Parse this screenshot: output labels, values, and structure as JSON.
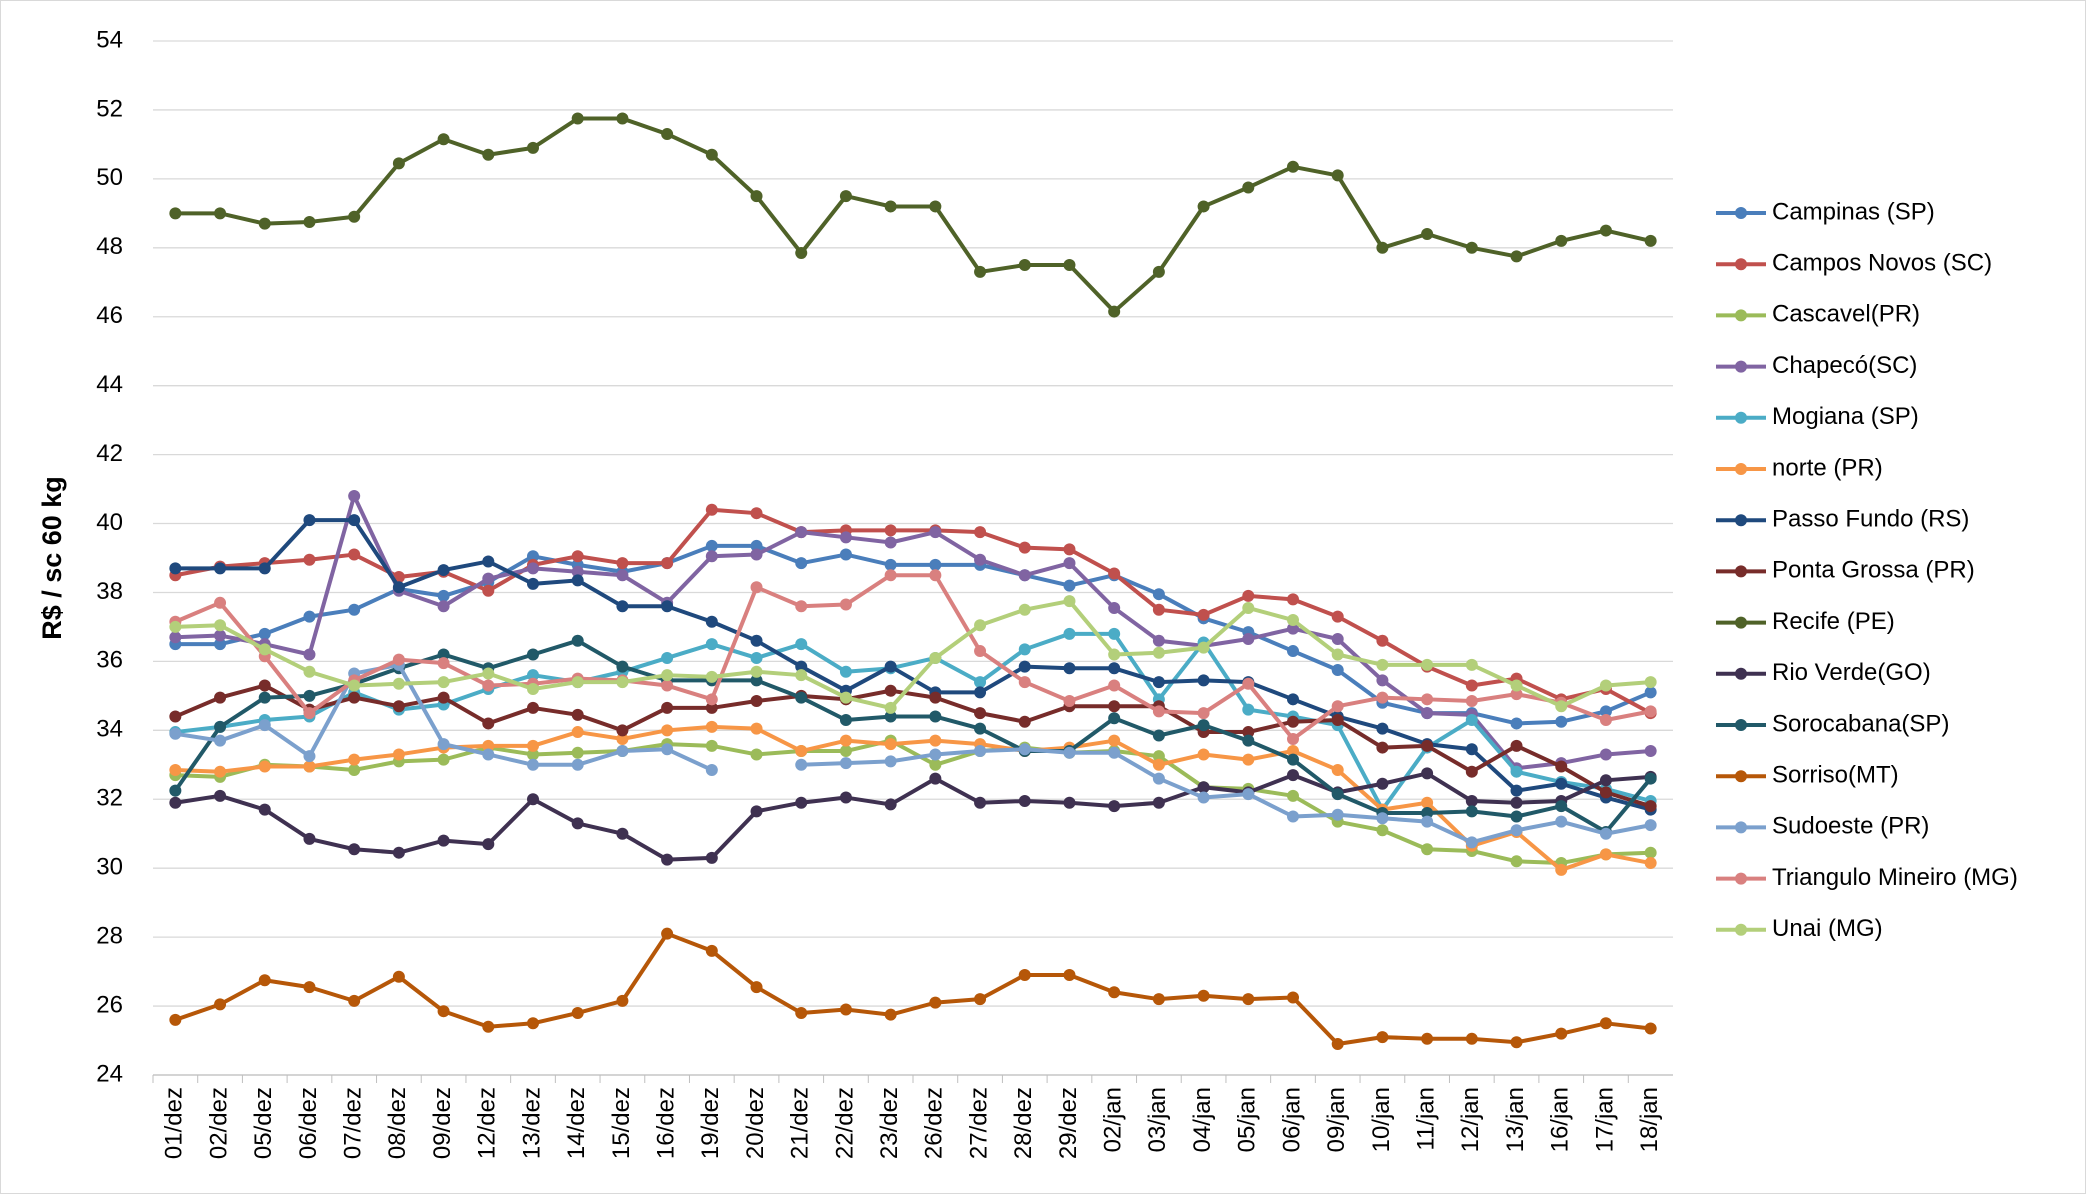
{
  "chart_data": {
    "type": "line",
    "y_label": "R$ / sc 60 kg",
    "categories": [
      "01/dez",
      "02/dez",
      "05/dez",
      "06/dez",
      "07/dez",
      "08/dez",
      "09/dez",
      "12/dez",
      "13/dez",
      "14/dez",
      "15/dez",
      "16/dez",
      "19/dez",
      "20/dez",
      "21/dez",
      "22/dez",
      "23/dez",
      "26/dez",
      "27/dez",
      "28/dez",
      "29/dez",
      "02/jan",
      "03/jan",
      "04/jan",
      "05/jan",
      "06/jan",
      "09/jan",
      "10/jan",
      "11/jan",
      "12/jan",
      "13/jan",
      "16/jan",
      "17/jan",
      "18/jan"
    ],
    "ylim": [
      24,
      54
    ],
    "yticks": [
      24,
      26,
      28,
      30,
      32,
      34,
      36,
      38,
      40,
      42,
      44,
      46,
      48,
      50,
      52,
      54
    ],
    "grid": true,
    "legend": "right",
    "series": [
      {
        "name": "Campinas (SP)",
        "color": "#4a7ebb",
        "values": [
          36.5,
          36.5,
          36.8,
          37.3,
          37.5,
          38.1,
          37.9,
          38.3,
          39.05,
          38.8,
          38.6,
          38.85,
          39.35,
          39.35,
          38.85,
          39.1,
          38.8,
          38.8,
          38.8,
          38.5,
          38.2,
          38.5,
          37.95,
          37.25,
          36.85,
          36.3,
          35.75,
          34.8,
          34.5,
          34.5,
          34.2,
          34.25,
          34.55,
          35.1
        ]
      },
      {
        "name": "Campos Novos (SC)",
        "color": "#c0504d",
        "values": [
          38.5,
          38.75,
          38.85,
          38.95,
          39.1,
          38.45,
          38.6,
          38.05,
          38.8,
          39.05,
          38.85,
          38.85,
          40.4,
          40.3,
          39.75,
          39.8,
          39.8,
          39.8,
          39.75,
          39.3,
          39.25,
          38.55,
          37.5,
          37.35,
          37.9,
          37.8,
          37.3,
          36.6,
          35.85,
          35.3,
          35.5,
          34.9,
          35.2,
          34.5
        ]
      },
      {
        "name": "Cascavel(PR)",
        "color": "#9bbb59",
        "values": [
          32.7,
          32.65,
          33,
          32.95,
          32.85,
          33.1,
          33.15,
          33.5,
          33.3,
          33.35,
          33.4,
          33.6,
          33.55,
          33.3,
          33.4,
          33.4,
          33.7,
          33,
          33.4,
          33.5,
          33.35,
          33.4,
          33.25,
          32.35,
          32.3,
          32.1,
          31.35,
          31.1,
          30.55,
          30.5,
          30.2,
          30.15,
          30.4,
          30.45
        ]
      },
      {
        "name": "Chapecó(SC)",
        "color": "#8064a2",
        "values": [
          36.7,
          36.75,
          36.5,
          36.2,
          40.8,
          38.05,
          37.6,
          38.4,
          38.7,
          38.6,
          38.5,
          37.7,
          39.05,
          39.1,
          39.75,
          39.6,
          39.45,
          39.75,
          38.95,
          38.5,
          38.85,
          37.55,
          36.6,
          36.45,
          36.65,
          36.95,
          36.65,
          35.45,
          34.5,
          34.45,
          32.9,
          33.05,
          33.3,
          33.4
        ]
      },
      {
        "name": "Mogiana (SP)",
        "color": "#4bacc6",
        "values": [
          33.95,
          34.1,
          34.3,
          34.4,
          35.1,
          34.6,
          34.75,
          35.2,
          35.6,
          35.4,
          35.7,
          36.1,
          36.5,
          36.1,
          36.5,
          35.7,
          35.8,
          36.1,
          35.4,
          36.35,
          36.8,
          36.8,
          34.9,
          36.55,
          34.6,
          34.4,
          34.15,
          31.7,
          33.5,
          34.3,
          32.8,
          32.5,
          32.3,
          31.95
        ]
      },
      {
        "name": "norte (PR)",
        "color": "#f79646",
        "values": [
          32.85,
          32.8,
          32.95,
          32.95,
          33.15,
          33.3,
          33.5,
          33.55,
          33.55,
          33.95,
          33.75,
          34,
          34.1,
          34.05,
          33.4,
          33.7,
          33.6,
          33.7,
          33.6,
          33.4,
          33.5,
          33.7,
          33,
          33.3,
          33.15,
          33.4,
          32.85,
          31.7,
          31.9,
          30.65,
          31.05,
          29.95,
          30.4,
          30.15
        ]
      },
      {
        "name": "Passo Fundo (RS)",
        "color": "#1f497d",
        "values": [
          38.7,
          38.7,
          38.7,
          40.1,
          40.1,
          38.15,
          38.65,
          38.9,
          38.25,
          38.35,
          37.6,
          37.6,
          37.15,
          36.6,
          35.85,
          35.15,
          35.85,
          35.1,
          35.1,
          35.85,
          35.8,
          35.8,
          35.4,
          35.45,
          35.4,
          34.9,
          34.4,
          34.05,
          33.6,
          33.45,
          32.25,
          32.45,
          32.05,
          31.7
        ]
      },
      {
        "name": "Ponta Grossa (PR)",
        "color": "#772c2a",
        "values": [
          34.4,
          34.95,
          35.3,
          34.6,
          34.95,
          34.7,
          34.95,
          34.2,
          34.65,
          34.45,
          34,
          34.65,
          34.65,
          34.85,
          35,
          34.9,
          35.15,
          34.95,
          34.5,
          34.25,
          34.7,
          34.7,
          34.7,
          33.95,
          33.95,
          34.25,
          34.3,
          33.5,
          33.55,
          32.8,
          33.55,
          32.95,
          32.2,
          31.8
        ]
      },
      {
        "name": "Recife (PE)",
        "color": "#4f6228",
        "values": [
          49,
          49,
          48.7,
          48.75,
          48.9,
          50.45,
          51.15,
          50.7,
          50.9,
          51.75,
          51.75,
          51.3,
          50.7,
          49.5,
          47.85,
          49.5,
          49.2,
          49.2,
          47.3,
          47.5,
          47.5,
          46.15,
          47.3,
          49.2,
          49.75,
          50.35,
          50.1,
          48,
          48.4,
          48,
          47.75,
          48.2,
          48.5,
          48.2
        ]
      },
      {
        "name": "Rio Verde(GO)",
        "color": "#3f3151",
        "values": [
          31.9,
          32.1,
          31.7,
          30.85,
          30.55,
          30.45,
          30.8,
          30.7,
          32,
          31.3,
          31,
          30.25,
          30.3,
          31.65,
          31.9,
          32.05,
          31.85,
          32.6,
          31.9,
          31.95,
          31.9,
          31.8,
          31.9,
          32.35,
          32.2,
          32.7,
          32.2,
          32.45,
          32.75,
          31.95,
          31.9,
          31.95,
          32.55,
          32.65
        ]
      },
      {
        "name": "Sorocabana(SP)",
        "color": "#215968",
        "values": [
          32.25,
          34.1,
          34.95,
          35,
          35.35,
          35.8,
          36.2,
          35.8,
          36.2,
          36.6,
          35.85,
          35.45,
          35.45,
          35.45,
          34.95,
          34.3,
          34.4,
          34.4,
          34.05,
          33.4,
          33.4,
          34.35,
          33.85,
          34.15,
          33.7,
          33.15,
          32.15,
          31.6,
          31.6,
          31.65,
          31.5,
          31.8,
          31.05,
          32.6
        ]
      },
      {
        "name": "Sorriso(MT)",
        "color": "#b65708",
        "values": [
          25.6,
          26.05,
          26.75,
          26.55,
          26.15,
          26.85,
          25.85,
          25.4,
          25.5,
          25.8,
          26.15,
          28.1,
          27.6,
          26.55,
          25.8,
          25.9,
          25.75,
          26.1,
          26.2,
          26.9,
          26.9,
          26.4,
          26.2,
          26.3,
          26.2,
          26.25,
          24.9,
          25.1,
          25.05,
          25.05,
          24.95,
          25.2,
          25.5,
          25.35
        ]
      },
      {
        "name": "Sudoeste (PR)",
        "color": "#7ba0cd",
        "values": [
          33.9,
          33.7,
          34.15,
          33.25,
          35.65,
          35.9,
          33.6,
          33.3,
          33,
          33,
          33.4,
          33.45,
          32.85,
          null,
          33,
          33.05,
          33.1,
          33.3,
          33.4,
          33.45,
          33.35,
          33.35,
          32.6,
          32.05,
          32.15,
          31.5,
          31.55,
          31.45,
          31.35,
          30.75,
          31.1,
          31.35,
          31,
          31.25
        ]
      },
      {
        "name": "Triangulo Mineiro (MG)",
        "color": "#d9807f",
        "values": [
          37.15,
          37.7,
          36.15,
          34.5,
          35.45,
          36.05,
          35.95,
          35.3,
          35.35,
          35.5,
          35.45,
          35.3,
          34.9,
          38.15,
          37.6,
          37.65,
          38.5,
          38.5,
          36.3,
          35.4,
          34.85,
          35.3,
          34.55,
          34.5,
          35.35,
          33.75,
          34.7,
          34.95,
          34.9,
          34.85,
          35.05,
          34.8,
          34.3,
          34.55
        ]
      },
      {
        "name": "Unai (MG)",
        "color": "#b3cf7a",
        "values": [
          37,
          37.05,
          36.35,
          35.7,
          35.3,
          35.35,
          35.4,
          35.65,
          35.2,
          35.4,
          35.4,
          35.6,
          35.55,
          35.7,
          35.6,
          34.95,
          34.65,
          36.1,
          37.05,
          37.5,
          37.75,
          36.2,
          36.25,
          36.4,
          37.55,
          37.2,
          36.2,
          35.9,
          35.9,
          35.9,
          35.3,
          34.7,
          35.3,
          35.4
        ]
      }
    ]
  }
}
